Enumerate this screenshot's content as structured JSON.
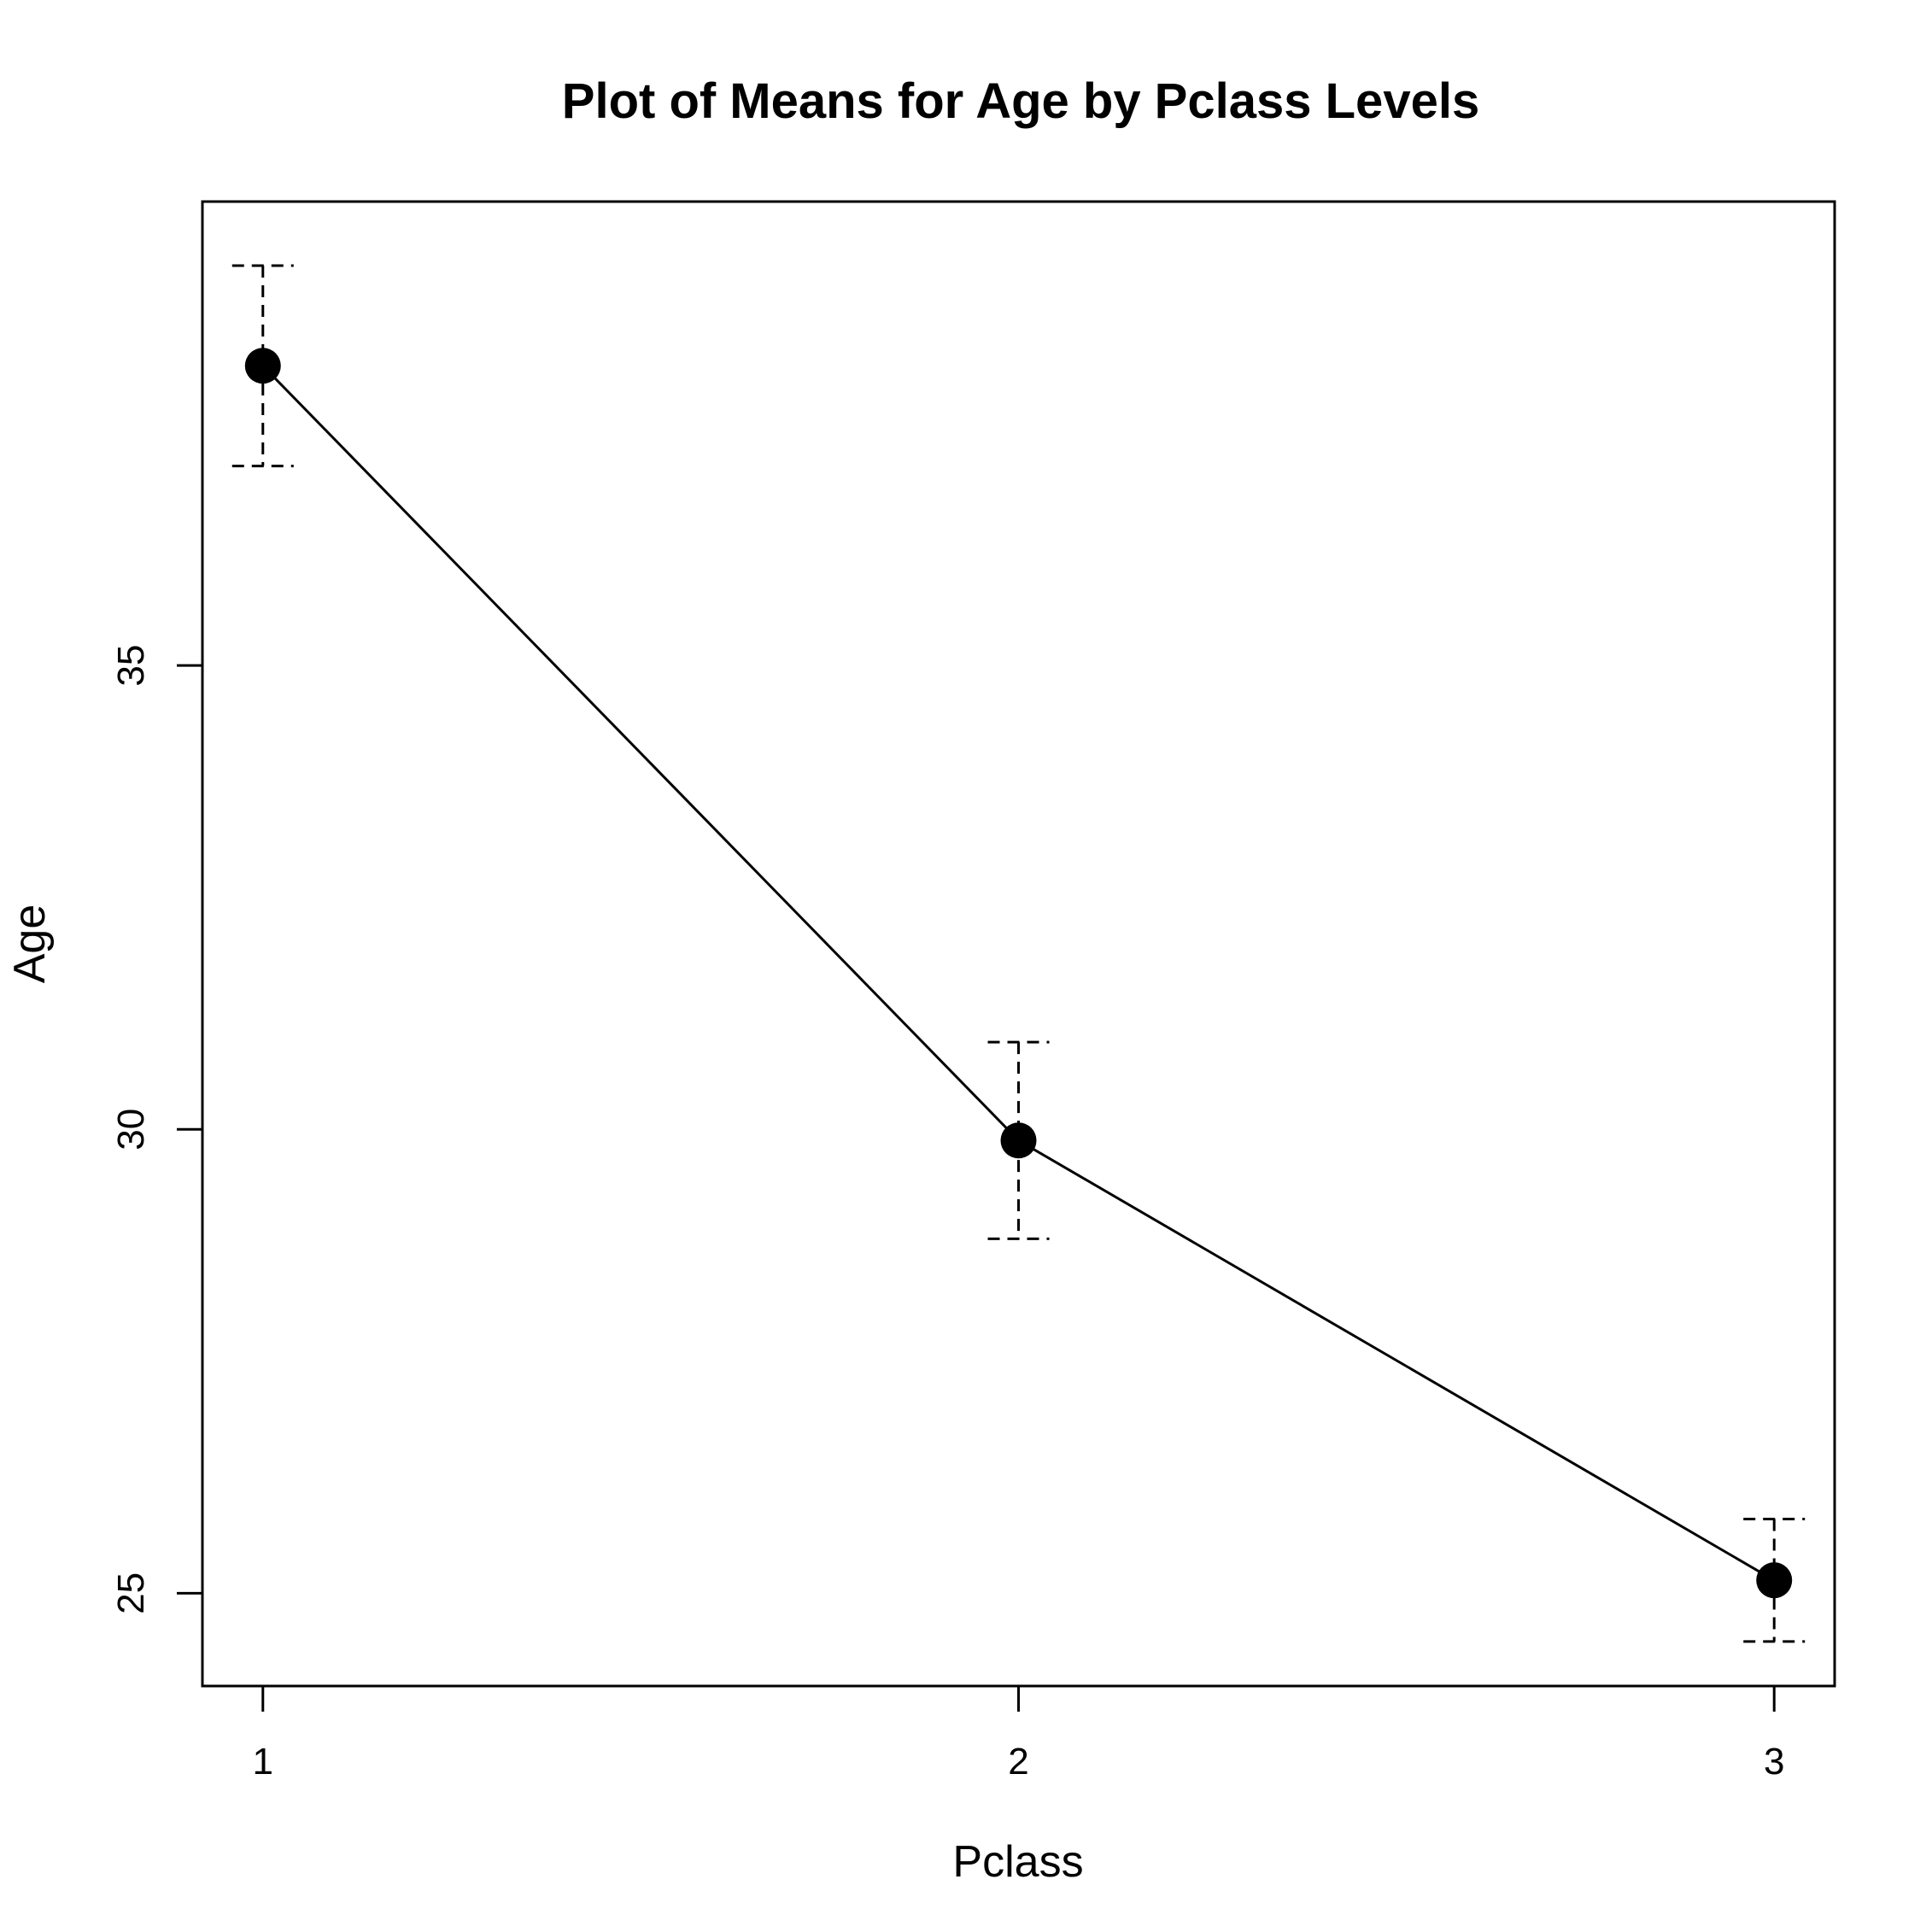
{
  "chart_data": {
    "type": "line",
    "title": "Plot of Means for Age by Pclass Levels",
    "xlabel": "Pclass",
    "ylabel": "Age",
    "categories": [
      "1",
      "2",
      "3"
    ],
    "x": [
      1,
      2,
      3
    ],
    "series": [
      {
        "values": [
          38.23,
          29.88,
          25.14
        ],
        "error_upper": [
          39.31,
          30.94,
          25.8
        ],
        "error_lower": [
          37.15,
          28.82,
          24.48
        ]
      }
    ],
    "yticks": [
      25,
      30,
      35
    ],
    "xlim": [
      0.92,
      3.08
    ],
    "ylim": [
      24.0,
      40.0
    ],
    "grid": false,
    "legend": "none"
  }
}
